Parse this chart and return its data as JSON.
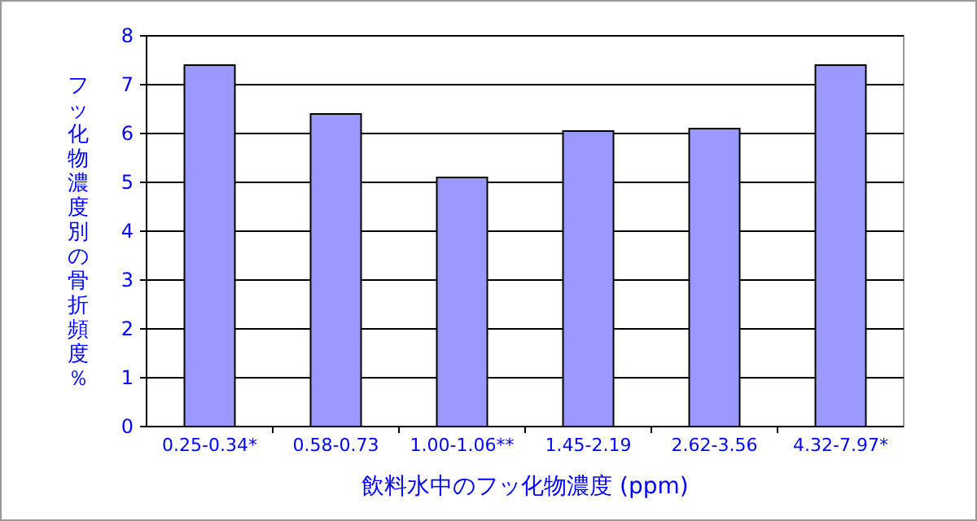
{
  "chart_data": {
    "type": "bar",
    "categories": [
      "0.25-0.34*",
      "0.58-0.73",
      "1.00-1.06**",
      "1.45-2.19",
      "2.62-3.56",
      "4.32-7.97*"
    ],
    "values": [
      7.4,
      6.4,
      5.1,
      6.05,
      6.1,
      7.4
    ],
    "color": "#9999ff",
    "xlabel": "飲料水中のフッ化物濃度 (ppm)",
    "ylabel": "フッ化物濃度別の骨折頻度％",
    "ylim": [
      0,
      8
    ],
    "yticks": [
      0,
      1,
      2,
      3,
      4,
      5,
      6,
      7,
      8
    ],
    "grid": "y"
  }
}
